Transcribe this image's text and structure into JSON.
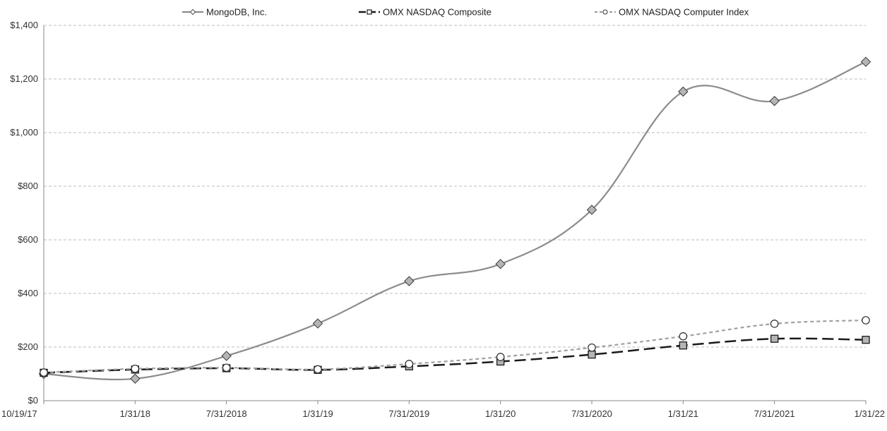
{
  "chart_data": {
    "type": "line",
    "categories": [
      "10/19/17",
      "1/31/18",
      "7/31/2018",
      "1/31/19",
      "7/31/2019",
      "1/31/20",
      "7/31/2020",
      "1/31/21",
      "7/31/2021",
      "1/31/22"
    ],
    "ylim": [
      0,
      1400
    ],
    "yticks": [
      0,
      200,
      400,
      600,
      800,
      1000,
      1200,
      1400
    ],
    "ytick_labels": [
      "$0",
      "$200",
      "$400",
      "$600",
      "$800",
      "$1,000",
      "$1,200",
      "$1,400"
    ],
    "grid": true,
    "legend_position": "top",
    "series": [
      {
        "name": "MongoDB, Inc.",
        "values": [
          100,
          82,
          167,
          288,
          446,
          510,
          712,
          1153,
          1118,
          1264
        ],
        "color": "#8c8c8c",
        "marker": "diamond",
        "line_style": "solid"
      },
      {
        "name": "OMX NASDAQ Composite",
        "values": [
          104,
          116,
          121,
          115,
          128,
          146,
          172,
          206,
          231,
          227
        ],
        "color": "#1a1a1a",
        "marker": "square",
        "line_style": "dashed"
      },
      {
        "name": "OMX NASDAQ Computer Index",
        "values": [
          105,
          119,
          123,
          117,
          137,
          163,
          198,
          240,
          287,
          300
        ],
        "color": "#a0a0a0",
        "marker": "circle",
        "line_style": "dotted"
      }
    ]
  }
}
